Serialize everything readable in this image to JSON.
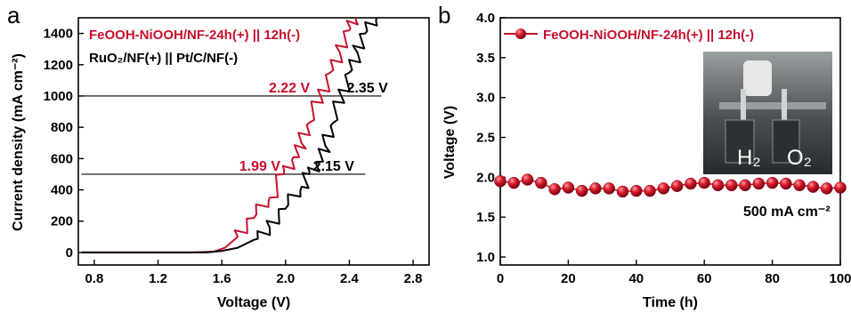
{
  "chart_data": [
    {
      "panel": "a",
      "type": "line",
      "xlabel": "Voltage (V)",
      "ylabel": "Current density (mA cm⁻²)",
      "xlim": [
        0.7,
        2.9
      ],
      "ylim": [
        -80,
        1500
      ],
      "xticks": [
        "0.8",
        "1.2",
        "1.6",
        "2.0",
        "2.4",
        "2.8"
      ],
      "yticks": [
        "0",
        "200",
        "400",
        "600",
        "800",
        "1000",
        "1200",
        "1400"
      ],
      "legend": [
        {
          "text": "FeOOH-NiOOH/NF-24h(+) || 12h(-)",
          "color": "#c8102e"
        },
        {
          "text": "RuO₂/NF(+) || Pt/C/NF(-)",
          "color": "#000000"
        }
      ],
      "series": [
        {
          "color": "#c8102e",
          "x": [
            0.72,
            1.4,
            1.55,
            1.62,
            1.7,
            1.8,
            1.9,
            1.99,
            2.05,
            2.1,
            2.15,
            2.22,
            2.28,
            2.34,
            2.4,
            2.44
          ],
          "y": [
            0,
            0,
            5,
            30,
            100,
            220,
            350,
            500,
            610,
            700,
            830,
            1000,
            1150,
            1280,
            1420,
            1500
          ]
        },
        {
          "color": "#000000",
          "x": [
            0.72,
            1.5,
            1.6,
            1.7,
            1.8,
            1.9,
            2.0,
            2.1,
            2.15,
            2.2,
            2.25,
            2.3,
            2.35,
            2.4,
            2.45,
            2.5,
            2.57
          ],
          "y": [
            0,
            0,
            10,
            30,
            80,
            160,
            280,
            420,
            500,
            580,
            680,
            830,
            1000,
            1150,
            1280,
            1400,
            1500
          ]
        }
      ],
      "reference_lines": [
        {
          "y": 1000,
          "x_from": 0.72,
          "x_to": 2.6
        },
        {
          "y": 500,
          "x_from": 0.72,
          "x_to": 2.5
        }
      ],
      "annotations": [
        {
          "text": "2.22 V",
          "color": "#c8102e",
          "x": 2.22,
          "y": 1000
        },
        {
          "text": "2.35 V",
          "color": "#000000",
          "x": 2.35,
          "y": 1000
        },
        {
          "text": "1.99 V",
          "color": "#c8102e",
          "x": 1.99,
          "y": 500
        },
        {
          "text": "2.15 V",
          "color": "#000000",
          "x": 2.15,
          "y": 500
        }
      ]
    },
    {
      "panel": "b",
      "type": "scatter",
      "xlabel": "Time (h)",
      "ylabel": "Voltage (V)",
      "xlim": [
        0,
        100
      ],
      "ylim": [
        0.9,
        4.0
      ],
      "xticks": [
        "0",
        "20",
        "40",
        "60",
        "80",
        "100"
      ],
      "yticks": [
        "1.0",
        "1.5",
        "2.0",
        "2.5",
        "3.0",
        "3.5",
        "4.0"
      ],
      "legend": [
        {
          "text": "FeOOH-NiOOH/NF-24h(+) || 12h(-)",
          "color": "#c8102e"
        }
      ],
      "annotation": "500 mA cm⁻²",
      "inset_labels": [
        "H₂",
        "O₂"
      ],
      "series": [
        {
          "color": "#c8102e",
          "x": [
            0,
            4,
            8,
            12,
            16,
            20,
            24,
            28,
            32,
            36,
            40,
            44,
            48,
            52,
            56,
            60,
            64,
            68,
            72,
            76,
            80,
            84,
            88,
            92,
            96,
            100
          ],
          "y": [
            1.95,
            1.93,
            1.97,
            1.93,
            1.85,
            1.87,
            1.83,
            1.86,
            1.86,
            1.82,
            1.83,
            1.83,
            1.86,
            1.89,
            1.92,
            1.93,
            1.9,
            1.9,
            1.9,
            1.92,
            1.93,
            1.92,
            1.9,
            1.88,
            1.86,
            1.87
          ]
        }
      ]
    }
  ]
}
